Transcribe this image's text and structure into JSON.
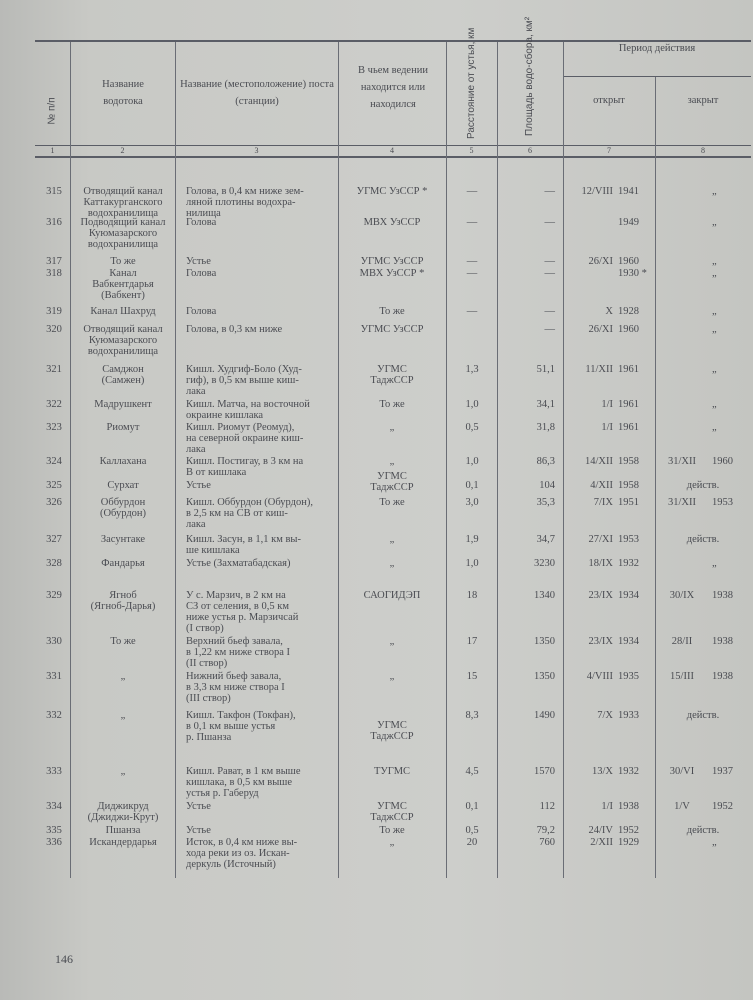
{
  "header": {
    "col1": "№ п/п",
    "col2": "Название водотока",
    "col3": "Название (местоположение) поста (станции)",
    "col4": "В чьем ведении находится или находился",
    "col5": "Расстояние от устья, км",
    "col6": "Площадь водо-сбора, км²",
    "period": "Период действия",
    "col7": "открыт",
    "col8": "закрыт",
    "numbers": [
      "1",
      "2",
      "3",
      "4",
      "5",
      "6",
      "7",
      "8"
    ]
  },
  "rows": [
    {
      "n": "315",
      "river": "Отводящий канал\nКаттакурганского\nводохранилища",
      "post": "Голова, в 0,4 км ниже зем-\n   ляной плотины водохра-\n   нилища",
      "org": "УГМС УзССР *",
      "dist": "—",
      "area": "—",
      "od": "12/VIII",
      "oy": "1941",
      "cd": "",
      "cy": "„"
    },
    {
      "n": "316",
      "river": "Подводящий канал\nКуюмазарского\nводохранилища",
      "post": "Голова",
      "org": "МВХ УзССР",
      "dist": "—",
      "area": "—",
      "od": "",
      "oy": "1949",
      "cd": "",
      "cy": "„"
    },
    {
      "n": "317",
      "river": "То же",
      "post": "Устье",
      "org": "УГМС УзССР",
      "dist": "—",
      "area": "—",
      "od": "26/XI",
      "oy": "1960",
      "cd": "",
      "cy": "„"
    },
    {
      "n": "318",
      "river": "Канал\nВабкентдарья\n(Вабкент)",
      "post": "Голова",
      "org": "МВХ УзССР *",
      "dist": "—",
      "area": "—",
      "od": "",
      "oy": "1930 *",
      "cd": "",
      "cy": "„"
    },
    {
      "n": "319",
      "river": "Канал Шахруд",
      "post": "Голова",
      "org": "То же",
      "dist": "—",
      "area": "—",
      "od": "X",
      "oy": "1928",
      "cd": "",
      "cy": "„"
    },
    {
      "n": "320",
      "river": "Отводящий канал\nКуюмазарского\nводохранилища",
      "post": "Голова, в 0,3 км ниже",
      "org": "УГМС УзССР",
      "dist": "",
      "area": "—",
      "od": "26/XI",
      "oy": "1960",
      "cd": "",
      "cy": "„"
    },
    {
      "n": "321",
      "river": "Самджон\n(Самжен)",
      "post": "Кишл. Худгиф-Боло (Худ-\n   гиф), в 0,5 км выше киш-\n   лака",
      "org": "УГМС\nТаджССР",
      "dist": "1,3",
      "area": "51,1",
      "od": "11/XII",
      "oy": "1961",
      "cd": "",
      "cy": "„"
    },
    {
      "n": "322",
      "river": "Мадрушкент",
      "post": "Кишл. Матча, на восточной\n   окраине кишлака",
      "org": "То же",
      "dist": "1,0",
      "area": "34,1",
      "od": "1/I",
      "oy": "1961",
      "cd": "",
      "cy": "„"
    },
    {
      "n": "323",
      "river": "Риомут",
      "post": "Кишл. Риомут (Реомуд),\n   на северной окраине киш-\n   лака",
      "org": "„",
      "dist": "0,5",
      "area": "31,8",
      "od": "1/I",
      "oy": "1961",
      "cd": "",
      "cy": "„"
    },
    {
      "n": "324",
      "river": "Каллахана",
      "post": "Кишл. Постигау, в 3 км на\n   В от кишлака",
      "org": "„",
      "dist": "1,0",
      "area": "86,3",
      "od": "14/XII",
      "oy": "1958",
      "cd": "31/XII",
      "cy": "1960"
    },
    {
      "n": "325",
      "river": "Сурхат",
      "post": "Устье",
      "org": "УГМС\nТаджССР",
      "dist": "0,1",
      "area": "104",
      "od": "4/XII",
      "oy": "1958",
      "cd": "действ.",
      "cy": ""
    },
    {
      "n": "326",
      "river": "Оббурдон\n(Обурдон)",
      "post": "Кишл. Оббурдон (Обурдон),\n   в 2,5 км на СВ от киш-\n   лака",
      "org": "То же",
      "dist": "3,0",
      "area": "35,3",
      "od": "7/IX",
      "oy": "1951",
      "cd": "31/XII",
      "cy": "1953"
    },
    {
      "n": "327",
      "river": "Засунтаке",
      "post": "Кишл. Засун, в 1,1 км вы-\n   ше кишлака",
      "org": "„",
      "dist": "1,9",
      "area": "34,7",
      "od": "27/XI",
      "oy": "1953",
      "cd": "действ.",
      "cy": ""
    },
    {
      "n": "328",
      "river": "Фандарья",
      "post": "Устье (Захматабадская)",
      "org": "„",
      "dist": "1,0",
      "area": "3230",
      "od": "18/IX",
      "oy": "1932",
      "cd": "",
      "cy": "„"
    },
    {
      "n": "329",
      "river": "Ягноб\n(Ягноб-Дарья)",
      "post": "У с. Марзич, в 2 км на\n   СЗ от селения, в 0,5 км\n   ниже устья р. Марзичсай\n   (I створ)",
      "org": "САОГИДЭП",
      "dist": "18",
      "area": "1340",
      "od": "23/IX",
      "oy": "1934",
      "cd": "30/IX",
      "cy": "1938"
    },
    {
      "n": "330",
      "river": "То же",
      "post": "Верхний бьеф завала,\n   в 1,22 км ниже створа I\n   (II створ)",
      "org": "„",
      "dist": "17",
      "area": "1350",
      "od": "23/IX",
      "oy": "1934",
      "cd": "28/II",
      "cy": "1938"
    },
    {
      "n": "331",
      "river": "„",
      "post": "Нижний бьеф завала,\n   в 3,3 км ниже створа I\n   (III створ)",
      "org": "„",
      "dist": "15",
      "area": "1350",
      "od": "4/VIII",
      "oy": "1935",
      "cd": "15/III",
      "cy": "1938"
    },
    {
      "n": "332",
      "river": "„",
      "post": "Кишл. Такфон (Токфан),\n   в 0,1 км выше устья\n   р. Пшанза",
      "org": "УГМС\nТаджССР",
      "dist": "8,3",
      "area": "1490",
      "od": "7/X",
      "oy": "1933",
      "cd": "действ.",
      "cy": ""
    },
    {
      "n": "333",
      "river": "„",
      "post": "Кишл. Рават, в 1 км выше\n   кишлака, в 0,5 км выше\n   устья р. Габеруд",
      "org": "ТУГМС",
      "dist": "4,5",
      "area": "1570",
      "od": "13/X",
      "oy": "1932",
      "cd": "30/VI",
      "cy": "1937"
    },
    {
      "n": "334",
      "river": "Диджикруд\n(Джиджи-Крут)",
      "post": "Устье",
      "org": "УГМС\nТаджССР",
      "dist": "0,1",
      "area": "112",
      "od": "1/I",
      "oy": "1938",
      "cd": "1/V",
      "cy": "1952"
    },
    {
      "n": "335",
      "river": "Пшанза",
      "post": "Устье",
      "org": "То же",
      "dist": "0,5",
      "area": "79,2",
      "od": "24/IV",
      "oy": "1952",
      "cd": "действ.",
      "cy": ""
    },
    {
      "n": "336",
      "river": "Искандердарья",
      "post": "Исток, в 0,4 км ниже вы-\n   хода реки из оз. Искан-\n   деркуль (Источный)",
      "org": "„",
      "dist": "20",
      "area": "760",
      "od": "2/XII",
      "oy": "1929",
      "cd": "",
      "cy": "„"
    }
  ],
  "footer": {
    "page_number": "146"
  }
}
